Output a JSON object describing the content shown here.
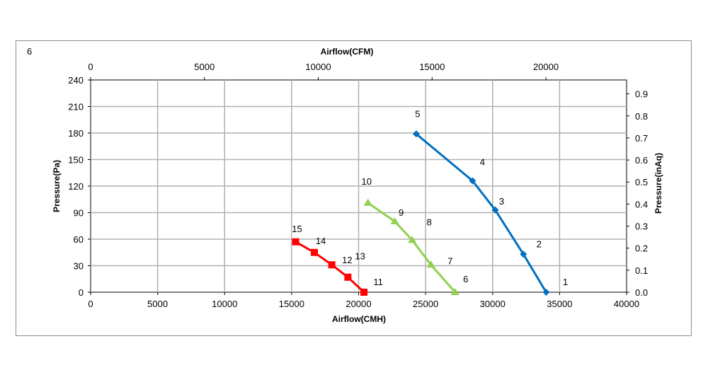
{
  "figure_label": "6",
  "chart_data": {
    "type": "line",
    "xlabel": "Airflow(CMH)",
    "x2label": "Airflow(CFM)",
    "ylabel": "Pressure(Pa)",
    "y2label": "Pressure(inAq)",
    "xlim": [
      0,
      40000
    ],
    "x2lim": [
      0,
      23545
    ],
    "ylim": [
      0,
      240
    ],
    "y2lim": [
      0,
      0.963
    ],
    "x_ticks": [
      "0",
      "5000",
      "10000",
      "15000",
      "20000",
      "25000",
      "30000",
      "35000",
      "40000"
    ],
    "x2_ticks": [
      "0",
      "5000",
      "10000",
      "15000",
      "20000"
    ],
    "y_ticks": [
      "0",
      "30",
      "60",
      "90",
      "120",
      "150",
      "180",
      "210",
      "240"
    ],
    "y2_ticks": [
      "0.0",
      "0.1",
      "0.2",
      "0.3",
      "0.4",
      "0.5",
      "0.6",
      "0.7",
      "0.8",
      "0.9"
    ],
    "grid": true,
    "series": [
      {
        "color": "#0070c0",
        "marker": "diamond",
        "points": [
          {
            "label": "1",
            "x": 34000,
            "y": 0
          },
          {
            "label": "2",
            "x": 32300,
            "y": 43
          },
          {
            "label": "3",
            "x": 30200,
            "y": 93
          },
          {
            "label": "4",
            "x": 28500,
            "y": 126
          },
          {
            "label": "5",
            "x": 24300,
            "y": 179
          }
        ]
      },
      {
        "color": "#92d050",
        "marker": "triangle",
        "points": [
          {
            "label": "6",
            "x": 27200,
            "y": 0
          },
          {
            "label": "7",
            "x": 25400,
            "y": 31
          },
          {
            "label": "8",
            "x": 24000,
            "y": 59
          },
          {
            "label": "9",
            "x": 22700,
            "y": 80
          },
          {
            "label": "10",
            "x": 20700,
            "y": 101
          }
        ]
      },
      {
        "color": "#ff0000",
        "marker": "square",
        "points": [
          {
            "label": "11",
            "x": 20400,
            "y": 0
          },
          {
            "label": "12",
            "x": 19200,
            "y": 17
          },
          {
            "label": "13",
            "x": 18000,
            "y": 31
          },
          {
            "label": "14",
            "x": 16700,
            "y": 45
          },
          {
            "label": "15",
            "x": 15300,
            "y": 57
          }
        ]
      }
    ]
  }
}
